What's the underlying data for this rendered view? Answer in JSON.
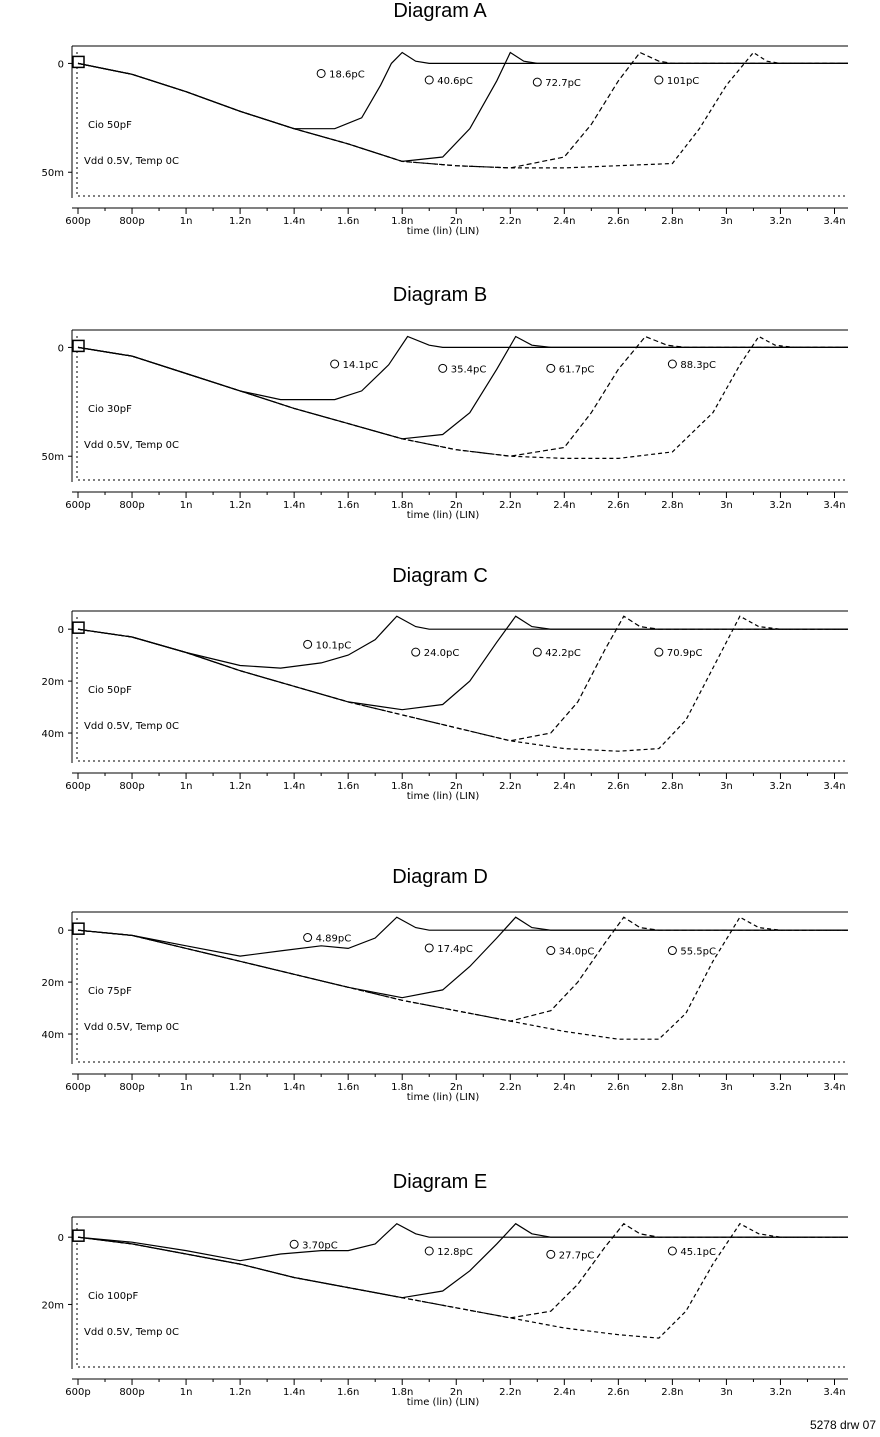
{
  "drawing_ref": "5278 drw 07",
  "chart_data": [
    {
      "type": "line",
      "title": "Diagram A",
      "xlabel": "time (lin) (LIN)",
      "xticks": [
        "600p",
        "800p",
        "1n",
        "1.2n",
        "1.4n",
        "1.6n",
        "1.8n",
        "2n",
        "2.2n",
        "2.4n",
        "2.6n",
        "2.8n",
        "3n",
        "3.2n",
        "3.4n"
      ],
      "xlim": [
        0.6,
        3.45
      ],
      "yticks": [
        {
          "v": 0,
          "label": "0"
        },
        {
          "v": -50,
          "label": "50m"
        }
      ],
      "ylim": [
        -60,
        8
      ],
      "condition": "Cio 50pF",
      "vdd_label": "Vdd 0.5V, Temp 0C",
      "series": [
        {
          "name": "18.6pC",
          "label_at": [
            1.5,
            -6
          ],
          "values_x": [
            0.6,
            0.8,
            1.0,
            1.2,
            1.4,
            1.55,
            1.65,
            1.72,
            1.76,
            1.8,
            1.85,
            1.9
          ],
          "values_y": [
            0,
            -5,
            -13,
            -22,
            -30,
            -30,
            -25,
            -10,
            0,
            5,
            1,
            0
          ]
        },
        {
          "name": "40.6pC",
          "label_at": [
            1.9,
            -9
          ],
          "values_x": [
            0.6,
            0.8,
            1.0,
            1.2,
            1.4,
            1.6,
            1.8,
            1.95,
            2.05,
            2.15,
            2.2,
            2.25,
            2.3
          ],
          "values_y": [
            0,
            -5,
            -13,
            -22,
            -30,
            -37,
            -45,
            -43,
            -30,
            -8,
            5,
            1,
            0
          ]
        },
        {
          "name": "72.7pC",
          "label_at": [
            2.3,
            -10
          ],
          "values_x": [
            0.6,
            0.8,
            1.0,
            1.2,
            1.4,
            1.6,
            1.8,
            2.0,
            2.2,
            2.4,
            2.5,
            2.6,
            2.68,
            2.75,
            2.8
          ],
          "values_y": [
            0,
            -5,
            -13,
            -22,
            -30,
            -37,
            -45,
            -47,
            -48,
            -43,
            -28,
            -8,
            5,
            1,
            0
          ]
        },
        {
          "name": "101pC",
          "label_at": [
            2.75,
            -9
          ],
          "values_x": [
            0.6,
            0.8,
            1.0,
            1.2,
            1.4,
            1.6,
            1.8,
            2.0,
            2.2,
            2.4,
            2.6,
            2.8,
            2.9,
            3.0,
            3.1,
            3.15,
            3.2
          ],
          "values_y": [
            0,
            -5,
            -13,
            -22,
            -30,
            -37,
            -45,
            -47,
            -48,
            -48,
            -47,
            -46,
            -30,
            -10,
            5,
            1,
            0
          ]
        }
      ]
    },
    {
      "type": "line",
      "title": "Diagram B",
      "xlabel": "time (lin) (LIN)",
      "xticks": [
        "600p",
        "800p",
        "1n",
        "1.2n",
        "1.4n",
        "1.6n",
        "1.8n",
        "2n",
        "2.2n",
        "2.4n",
        "2.6n",
        "2.8n",
        "3n",
        "3.2n",
        "3.4n"
      ],
      "xlim": [
        0.6,
        3.45
      ],
      "yticks": [
        {
          "v": 0,
          "label": "0"
        },
        {
          "v": -50,
          "label": "50m"
        }
      ],
      "ylim": [
        -60,
        8
      ],
      "condition": "Cio 30pF",
      "vdd_label": "Vdd 0.5V, Temp 0C",
      "series": [
        {
          "name": "14.1pC",
          "label_at": [
            1.55,
            -9
          ],
          "values_x": [
            0.6,
            0.8,
            1.0,
            1.2,
            1.35,
            1.55,
            1.65,
            1.75,
            1.82,
            1.9,
            1.95,
            2.0
          ],
          "values_y": [
            0,
            -4,
            -12,
            -20,
            -24,
            -24,
            -20,
            -8,
            5,
            1,
            0,
            0
          ]
        },
        {
          "name": "35.4pC",
          "label_at": [
            1.95,
            -11
          ],
          "values_x": [
            0.6,
            0.8,
            1.0,
            1.2,
            1.4,
            1.6,
            1.8,
            1.95,
            2.05,
            2.15,
            2.22,
            2.28,
            2.35
          ],
          "values_y": [
            0,
            -4,
            -12,
            -20,
            -28,
            -35,
            -42,
            -40,
            -30,
            -10,
            5,
            1,
            0
          ]
        },
        {
          "name": "61.7pC",
          "label_at": [
            2.35,
            -11
          ],
          "values_x": [
            0.6,
            0.8,
            1.0,
            1.2,
            1.4,
            1.6,
            1.8,
            2.0,
            2.2,
            2.4,
            2.5,
            2.6,
            2.7,
            2.78,
            2.85
          ],
          "values_y": [
            0,
            -4,
            -12,
            -20,
            -28,
            -35,
            -42,
            -47,
            -50,
            -46,
            -30,
            -10,
            5,
            1,
            0
          ]
        },
        {
          "name": "88.3pC",
          "label_at": [
            2.8,
            -9
          ],
          "values_x": [
            0.6,
            0.8,
            1.0,
            1.2,
            1.4,
            1.6,
            1.8,
            2.0,
            2.2,
            2.4,
            2.6,
            2.8,
            2.95,
            3.05,
            3.12,
            3.18,
            3.25
          ],
          "values_y": [
            0,
            -4,
            -12,
            -20,
            -28,
            -35,
            -42,
            -47,
            -50,
            -51,
            -51,
            -48,
            -30,
            -8,
            5,
            1,
            0
          ]
        }
      ]
    },
    {
      "type": "line",
      "title": "Diagram C",
      "xlabel": "time (lin) (LIN)",
      "xticks": [
        "600p",
        "800p",
        "1n",
        "1.2n",
        "1.4n",
        "1.6n",
        "1.8n",
        "2n",
        "2.2n",
        "2.4n",
        "2.6n",
        "2.8n",
        "3n",
        "3.2n",
        "3.4n"
      ],
      "xlim": [
        0.6,
        3.45
      ],
      "yticks": [
        {
          "v": 0,
          "label": "0"
        },
        {
          "v": -20,
          "label": "20m"
        },
        {
          "v": -40,
          "label": "40m"
        }
      ],
      "ylim": [
        -50,
        7
      ],
      "condition": "Cio 50pF",
      "vdd_label": "Vdd 0.5V, Temp 0C",
      "series": [
        {
          "name": "10.1pC",
          "label_at": [
            1.45,
            -7
          ],
          "values_x": [
            0.6,
            0.8,
            1.0,
            1.2,
            1.35,
            1.5,
            1.6,
            1.7,
            1.78,
            1.85,
            1.9,
            1.95
          ],
          "values_y": [
            0,
            -3,
            -9,
            -14,
            -15,
            -13,
            -10,
            -4,
            5,
            1,
            0,
            0
          ]
        },
        {
          "name": "24.0pC",
          "label_at": [
            1.85,
            -10
          ],
          "values_x": [
            0.6,
            0.8,
            1.0,
            1.2,
            1.4,
            1.6,
            1.8,
            1.95,
            2.05,
            2.15,
            2.22,
            2.28,
            2.35
          ],
          "values_y": [
            0,
            -3,
            -9,
            -16,
            -22,
            -28,
            -31,
            -29,
            -20,
            -5,
            5,
            1,
            0
          ]
        },
        {
          "name": "42.2pC",
          "label_at": [
            2.3,
            -10
          ],
          "values_x": [
            0.6,
            0.8,
            1.0,
            1.2,
            1.4,
            1.6,
            1.8,
            2.0,
            2.2,
            2.35,
            2.45,
            2.55,
            2.62,
            2.68,
            2.75
          ],
          "values_y": [
            0,
            -3,
            -9,
            -16,
            -22,
            -28,
            -33,
            -38,
            -43,
            -40,
            -28,
            -8,
            5,
            1,
            0
          ]
        },
        {
          "name": "70.9pC",
          "label_at": [
            2.75,
            -10
          ],
          "values_x": [
            0.6,
            0.8,
            1.0,
            1.2,
            1.4,
            1.6,
            1.8,
            2.0,
            2.2,
            2.4,
            2.6,
            2.75,
            2.85,
            2.95,
            3.05,
            3.12,
            3.2
          ],
          "values_y": [
            0,
            -3,
            -9,
            -16,
            -22,
            -28,
            -33,
            -38,
            -43,
            -46,
            -47,
            -46,
            -35,
            -15,
            5,
            1,
            0
          ]
        }
      ]
    },
    {
      "type": "line",
      "title": "Diagram D",
      "xlabel": "time (lin) (LIN)",
      "xticks": [
        "600p",
        "800p",
        "1n",
        "1.2n",
        "1.4n",
        "1.6n",
        "1.8n",
        "2n",
        "2.2n",
        "2.4n",
        "2.6n",
        "2.8n",
        "3n",
        "3.2n",
        "3.4n"
      ],
      "xlim": [
        0.6,
        3.45
      ],
      "yticks": [
        {
          "v": 0,
          "label": "0"
        },
        {
          "v": -20,
          "label": "20m"
        },
        {
          "v": -40,
          "label": "40m"
        }
      ],
      "ylim": [
        -50,
        7
      ],
      "condition": "Cio 75pF",
      "vdd_label": "Vdd 0.5V, Temp 0C",
      "series": [
        {
          "name": "4.89pC",
          "label_at": [
            1.45,
            -4
          ],
          "values_x": [
            0.6,
            0.8,
            1.0,
            1.2,
            1.35,
            1.5,
            1.6,
            1.7,
            1.78,
            1.85,
            1.9,
            1.95
          ],
          "values_y": [
            0,
            -2,
            -6,
            -10,
            -8,
            -6,
            -7,
            -3,
            5,
            1,
            0,
            0
          ]
        },
        {
          "name": "17.4pC",
          "label_at": [
            1.9,
            -8
          ],
          "values_x": [
            0.6,
            0.8,
            1.0,
            1.2,
            1.4,
            1.6,
            1.8,
            1.95,
            2.05,
            2.15,
            2.22,
            2.28,
            2.35
          ],
          "values_y": [
            0,
            -2,
            -7,
            -12,
            -17,
            -22,
            -26,
            -23,
            -14,
            -3,
            5,
            1,
            0
          ]
        },
        {
          "name": "34.0pC",
          "label_at": [
            2.35,
            -9
          ],
          "values_x": [
            0.6,
            0.8,
            1.0,
            1.2,
            1.4,
            1.6,
            1.8,
            2.0,
            2.2,
            2.35,
            2.45,
            2.55,
            2.62,
            2.68,
            2.75
          ],
          "values_y": [
            0,
            -2,
            -7,
            -12,
            -17,
            -22,
            -27,
            -31,
            -35,
            -31,
            -20,
            -5,
            5,
            1,
            0
          ]
        },
        {
          "name": "55.5pC",
          "label_at": [
            2.8,
            -9
          ],
          "values_x": [
            0.6,
            0.8,
            1.0,
            1.2,
            1.4,
            1.6,
            1.8,
            2.0,
            2.2,
            2.4,
            2.6,
            2.75,
            2.85,
            2.95,
            3.05,
            3.12,
            3.2
          ],
          "values_y": [
            0,
            -2,
            -7,
            -12,
            -17,
            -22,
            -27,
            -31,
            -35,
            -39,
            -42,
            -42,
            -32,
            -12,
            5,
            1,
            0
          ]
        }
      ]
    },
    {
      "type": "line",
      "title": "Diagram E",
      "xlabel": "time (lin) (LIN)",
      "xticks": [
        "600p",
        "800p",
        "1n",
        "1.2n",
        "1.4n",
        "1.6n",
        "1.8n",
        "2n",
        "2.2n",
        "2.4n",
        "2.6n",
        "2.8n",
        "3n",
        "3.2n",
        "3.4n"
      ],
      "xlim": [
        0.6,
        3.45
      ],
      "yticks": [
        {
          "v": 0,
          "label": "0"
        },
        {
          "v": -20,
          "label": "20m"
        }
      ],
      "ylim": [
        -38,
        6
      ],
      "condition": "Cio 100pF",
      "vdd_label": "Vdd 0.5V, Temp 0C",
      "series": [
        {
          "name": "3.70pC",
          "label_at": [
            1.4,
            -3
          ],
          "values_x": [
            0.6,
            0.8,
            1.0,
            1.2,
            1.35,
            1.5,
            1.6,
            1.7,
            1.78,
            1.85,
            1.9,
            1.95
          ],
          "values_y": [
            0,
            -1.5,
            -4,
            -7,
            -5,
            -4,
            -4,
            -2,
            4,
            1,
            0,
            0
          ]
        },
        {
          "name": "12.8pC",
          "label_at": [
            1.9,
            -5
          ],
          "values_x": [
            0.6,
            0.8,
            1.0,
            1.2,
            1.4,
            1.6,
            1.8,
            1.95,
            2.05,
            2.15,
            2.22,
            2.28,
            2.35
          ],
          "values_y": [
            0,
            -2,
            -5,
            -8,
            -12,
            -15,
            -18,
            -16,
            -10,
            -2,
            4,
            1,
            0
          ]
        },
        {
          "name": "27.7pC",
          "label_at": [
            2.35,
            -6
          ],
          "values_x": [
            0.6,
            0.8,
            1.0,
            1.2,
            1.4,
            1.6,
            1.8,
            2.0,
            2.2,
            2.35,
            2.45,
            2.55,
            2.62,
            2.68,
            2.75
          ],
          "values_y": [
            0,
            -2,
            -5,
            -8,
            -12,
            -15,
            -18,
            -21,
            -24,
            -22,
            -14,
            -3,
            4,
            1,
            0
          ]
        },
        {
          "name": "45.1pC",
          "label_at": [
            2.8,
            -5
          ],
          "values_x": [
            0.6,
            0.8,
            1.0,
            1.2,
            1.4,
            1.6,
            1.8,
            2.0,
            2.2,
            2.4,
            2.6,
            2.75,
            2.85,
            2.95,
            3.05,
            3.12,
            3.2
          ],
          "values_y": [
            0,
            -2,
            -5,
            -8,
            -12,
            -15,
            -18,
            -21,
            -24,
            -27,
            -29,
            -30,
            -22,
            -8,
            4,
            1,
            0
          ]
        }
      ]
    }
  ]
}
